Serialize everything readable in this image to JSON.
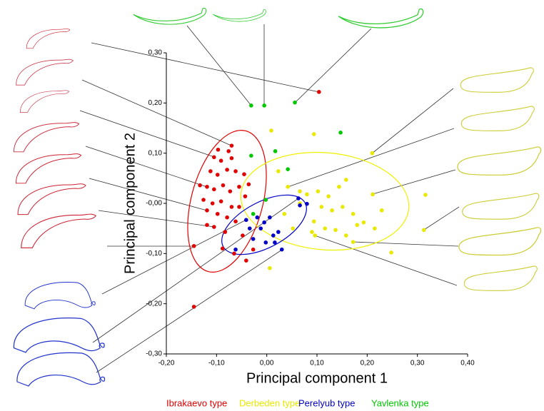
{
  "chart_data": {
    "type": "scatter",
    "xlabel": "Principal component 1",
    "ylabel": "Principal component 2",
    "xlim": [
      -0.2,
      0.4
    ],
    "ylim": [
      -0.3,
      0.3
    ],
    "xticks": [
      {
        "value": -0.2,
        "label": "-0,20"
      },
      {
        "value": -0.1,
        "label": "-0,10"
      },
      {
        "value": 0,
        "label": "0,00"
      },
      {
        "value": 0.1,
        "label": "0,10"
      },
      {
        "value": 0.2,
        "label": "0,20"
      },
      {
        "value": 0.3,
        "label": "0,30"
      },
      {
        "value": 0.4,
        "label": "0,40"
      }
    ],
    "yticks": [
      {
        "value": -0.3,
        "label": "-0,30"
      },
      {
        "value": -0.2,
        "label": "-0,20"
      },
      {
        "value": -0.1,
        "label": "-0,10"
      },
      {
        "value": 0,
        "label": "-0,00"
      },
      {
        "value": 0.1,
        "label": "0,10"
      },
      {
        "value": 0.2,
        "label": "0,20"
      },
      {
        "value": 0.3,
        "label": "0,30"
      }
    ],
    "series": [
      {
        "name": "Ibrakaevo type",
        "color": "#e00000",
        "x": [
          0.104,
          -0.145,
          -0.145,
          -0.07,
          -0.076,
          -0.105,
          -0.091,
          -0.07,
          -0.112,
          -0.098,
          -0.079,
          -0.062,
          -0.045,
          -0.119,
          -0.105,
          -0.087,
          -0.073,
          -0.055,
          -0.036,
          -0.126,
          -0.108,
          -0.091,
          -0.07,
          -0.119,
          -0.098,
          -0.079,
          -0.062,
          -0.105,
          -0.083,
          -0.048,
          -0.088,
          -0.065,
          -0.041,
          -0.027,
          -0.119,
          -0.133,
          -0.055,
          -0.043,
          -0.097
        ],
        "values": [
          0.222,
          -0.206,
          -0.085,
          0.115,
          0.104,
          0.092,
          0.085,
          0.09,
          0.064,
          0.057,
          0.067,
          0.064,
          0.058,
          0.033,
          0.028,
          0.036,
          0.024,
          0.033,
          0.038,
          0.007,
          0.0,
          0.004,
          -0.007,
          -0.014,
          -0.021,
          -0.028,
          -0.036,
          -0.047,
          -0.057,
          -0.064,
          -0.09,
          -0.1,
          -0.114,
          -0.092,
          -0.043,
          0.036,
          -0.007,
          0.014,
          0.107
        ]
      },
      {
        "name": "Derbeden type",
        "color": "#e8e800",
        "x": [
          0.21,
          0.211,
          0.316,
          0.313,
          0.248,
          0.094,
          0.009,
          0.006,
          0.042,
          0.066,
          0.08,
          0.102,
          0.123,
          0.144,
          0.158,
          0.109,
          0.13,
          0.151,
          0.172,
          0.193,
          0.229,
          0.094,
          0.116,
          0.137,
          0.158,
          0.18,
          0.09,
          0.096,
          0.066,
          0.035,
          0.052,
          0.172,
          0.215,
          0.023
        ],
        "values": [
          0.1,
          0.018,
          0.017,
          -0.053,
          -0.098,
          0.138,
          0.145,
          -0.129,
          0.033,
          0.024,
          0.018,
          0.024,
          0.014,
          0.033,
          0.047,
          -0.007,
          -0.014,
          -0.007,
          -0.021,
          -0.038,
          -0.014,
          -0.036,
          -0.05,
          -0.053,
          -0.064,
          -0.043,
          -0.057,
          -0.064,
          0.0,
          -0.021,
          -0.05,
          -0.077,
          -0.05,
          0.064
        ]
      },
      {
        "name": "Perelyub type",
        "color": "#0000c8",
        "x": [
          0.063,
          0.066,
          0.08,
          0.03,
          -0.062,
          -0.027,
          -0.012,
          -0.005,
          0.006,
          0.023,
          0.016,
          -0.034,
          -0.041,
          -0.019,
          -0.002,
          0.013
        ],
        "values": [
          0.01,
          -0.004,
          -0.001,
          -0.092,
          -0.092,
          -0.071,
          -0.05,
          -0.038,
          -0.028,
          -0.057,
          -0.078,
          -0.05,
          -0.033,
          -0.028,
          -0.078,
          -0.064
        ]
      },
      {
        "name": "Yavlenka type",
        "color": "#00c800",
        "x": [
          -0.031,
          -0.005,
          0.056,
          0.147,
          0.017,
          -0.031,
          0.042,
          -0.002,
          -0.027
        ],
        "values": [
          0.195,
          0.195,
          0.201,
          0.141,
          0.104,
          0.095,
          0.068,
          0.007,
          -0.021
        ]
      }
    ]
  }
}
